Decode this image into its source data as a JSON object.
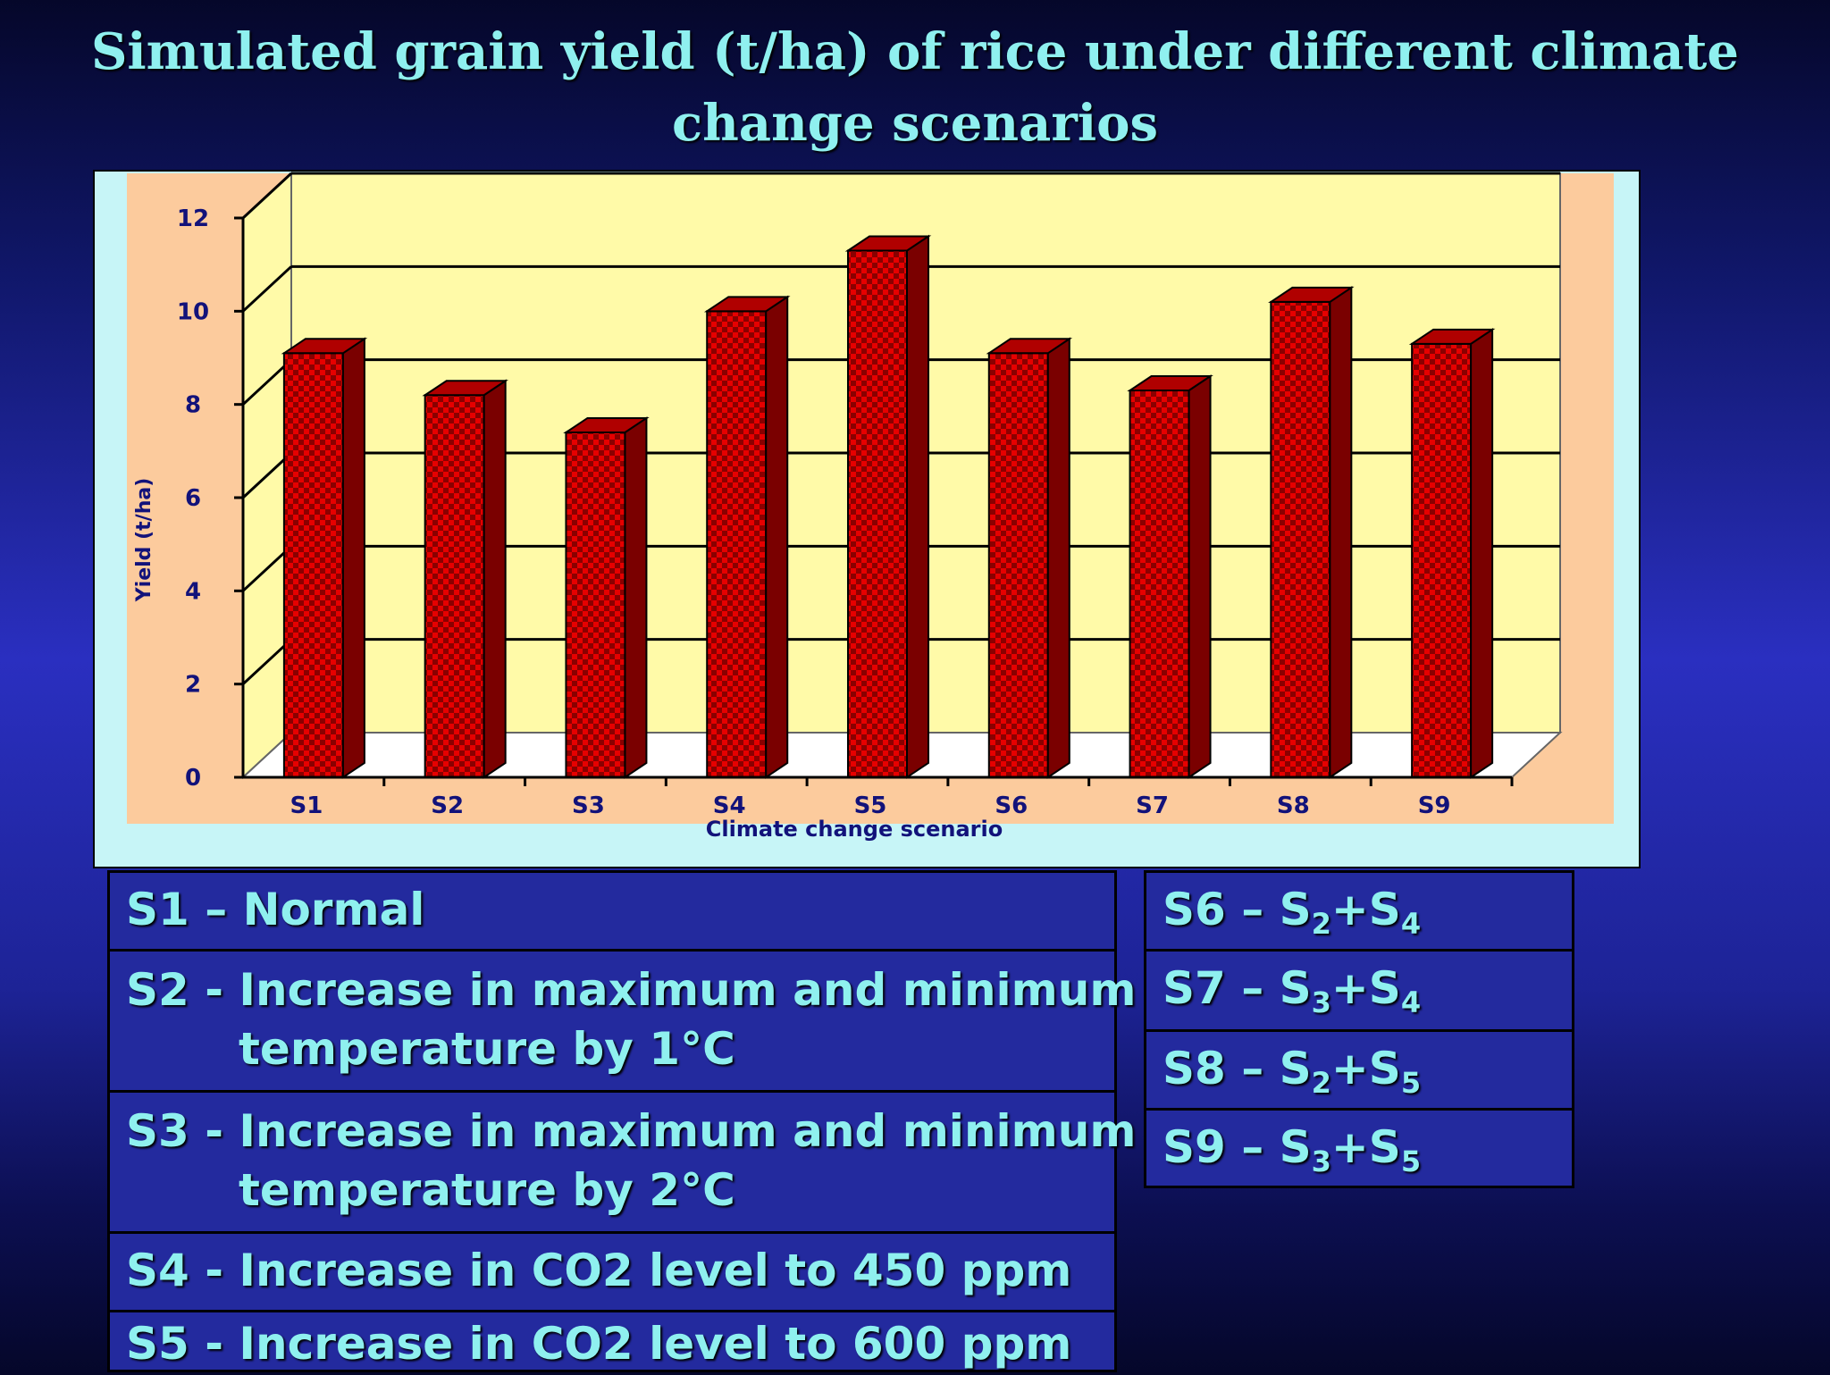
{
  "title": {
    "line1": "Simulated grain yield (t/ha) of rice under different climate",
    "line2": "change scenarios"
  },
  "colors": {
    "bar_front": "#e60000",
    "bar_checker": "#8a0000",
    "bar_side": "#7a0000",
    "bar_top": "#b00000",
    "plot_back": "#fffaa8",
    "plot_area": "#fccb9d",
    "frame": "#c7f5f7",
    "axis_text": "#12127a",
    "title_text": "#8ff0ef"
  },
  "chart_data": {
    "type": "bar",
    "style": "3d-column",
    "categories": [
      "S1",
      "S2",
      "S3",
      "S4",
      "S5",
      "S6",
      "S7",
      "S8",
      "S9"
    ],
    "values": [
      9.1,
      8.2,
      7.4,
      10.0,
      11.3,
      9.1,
      8.3,
      10.2,
      9.3
    ],
    "xlabel": "Climate change scenario",
    "ylabel": "Yield (t/ha)",
    "ylim": [
      0,
      12
    ],
    "yticks": [
      "0",
      "2",
      "4",
      "6",
      "8",
      "10",
      "12"
    ],
    "grid": true,
    "legend": "none"
  },
  "legend_left": [
    {
      "label": "S1 – Normal"
    },
    {
      "label": "S2 - Increase in maximum and minimum",
      "cont": "temperature by 1°C"
    },
    {
      "label": "S3 - Increase in maximum and minimum",
      "cont": "temperature by 2°C"
    },
    {
      "label": "S4 - Increase in CO2 level to 450 ppm"
    },
    {
      "label": "S5 - Increase in CO2 level to 600 ppm"
    }
  ],
  "legend_right": [
    {
      "prefix": "S6 – S",
      "a": "2",
      "plus": "+S",
      "b": "4"
    },
    {
      "prefix": "S7 – S",
      "a": "3",
      "plus": "+S",
      "b": "4"
    },
    {
      "prefix": "S8 – S",
      "a": "2",
      "plus": "+S",
      "b": "5"
    },
    {
      "prefix": "S9 – S",
      "a": "3",
      "plus": "+S",
      "b": "5"
    }
  ]
}
